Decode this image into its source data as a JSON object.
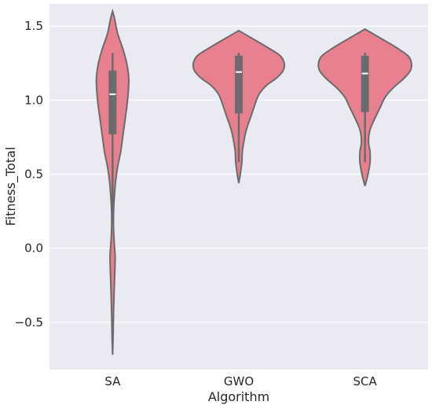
{
  "chart_data": {
    "type": "violin",
    "title": "",
    "xlabel": "Algorithm",
    "ylabel": "Fitness_Total",
    "ylim": [
      -0.82,
      1.65
    ],
    "yticks": [
      -0.5,
      0.0,
      0.5,
      1.0,
      1.5
    ],
    "ytick_labels": [
      "−0.5",
      "0.0",
      "0.5",
      "1.0",
      "1.5"
    ],
    "grid": true,
    "categories": [
      "SA",
      "GWO",
      "SCA"
    ],
    "violins": [
      {
        "category": "SA",
        "range": [
          -0.72,
          1.6
        ],
        "density": [
          [
            -0.72,
            0.0
          ],
          [
            -0.6,
            0.01
          ],
          [
            -0.45,
            0.018
          ],
          [
            -0.3,
            0.03
          ],
          [
            -0.15,
            0.045
          ],
          [
            -0.05,
            0.05
          ],
          [
            0.05,
            0.03
          ],
          [
            0.15,
            0.018
          ],
          [
            0.25,
            0.02
          ],
          [
            0.35,
            0.035
          ],
          [
            0.45,
            0.06
          ],
          [
            0.55,
            0.1
          ],
          [
            0.65,
            0.16
          ],
          [
            0.75,
            0.2
          ],
          [
            0.85,
            0.24
          ],
          [
            0.95,
            0.28
          ],
          [
            1.05,
            0.31
          ],
          [
            1.15,
            0.32
          ],
          [
            1.25,
            0.28
          ],
          [
            1.35,
            0.2
          ],
          [
            1.45,
            0.1
          ],
          [
            1.55,
            0.04
          ],
          [
            1.6,
            0.0
          ]
        ],
        "q1": 0.77,
        "median": 1.04,
        "q3": 1.2,
        "whisker_low": 0.18,
        "whisker_high": 1.32
      },
      {
        "category": "GWO",
        "range": [
          0.44,
          1.47
        ],
        "density": [
          [
            0.44,
            0.0
          ],
          [
            0.5,
            0.03
          ],
          [
            0.58,
            0.06
          ],
          [
            0.65,
            0.07
          ],
          [
            0.72,
            0.1
          ],
          [
            0.8,
            0.15
          ],
          [
            0.9,
            0.25
          ],
          [
            1.0,
            0.35
          ],
          [
            1.05,
            0.42
          ],
          [
            1.1,
            0.55
          ],
          [
            1.15,
            0.75
          ],
          [
            1.2,
            0.88
          ],
          [
            1.25,
            0.9
          ],
          [
            1.3,
            0.82
          ],
          [
            1.35,
            0.6
          ],
          [
            1.42,
            0.25
          ],
          [
            1.47,
            0.0
          ]
        ],
        "q1": 0.91,
        "median": 1.19,
        "q3": 1.3,
        "whisker_low": 0.58,
        "whisker_high": 1.32
      },
      {
        "category": "SCA",
        "range": [
          0.42,
          1.48
        ],
        "density": [
          [
            0.42,
            0.0
          ],
          [
            0.5,
            0.06
          ],
          [
            0.58,
            0.1
          ],
          [
            0.65,
            0.1
          ],
          [
            0.72,
            0.07
          ],
          [
            0.8,
            0.1
          ],
          [
            0.88,
            0.2
          ],
          [
            0.95,
            0.3
          ],
          [
            1.02,
            0.4
          ],
          [
            1.08,
            0.55
          ],
          [
            1.15,
            0.78
          ],
          [
            1.2,
            0.9
          ],
          [
            1.25,
            0.92
          ],
          [
            1.3,
            0.85
          ],
          [
            1.36,
            0.6
          ],
          [
            1.43,
            0.25
          ],
          [
            1.48,
            0.0
          ]
        ],
        "q1": 0.92,
        "median": 1.18,
        "q3": 1.3,
        "whisker_low": 0.58,
        "whisker_high": 1.32
      }
    ],
    "colors": {
      "violin_fill": "#e9808f",
      "violin_edge": "#6b6b6b",
      "box": "#6b6b6b",
      "median": "#ffffff",
      "background": "#eaeaf2",
      "grid": "#ffffff"
    }
  }
}
